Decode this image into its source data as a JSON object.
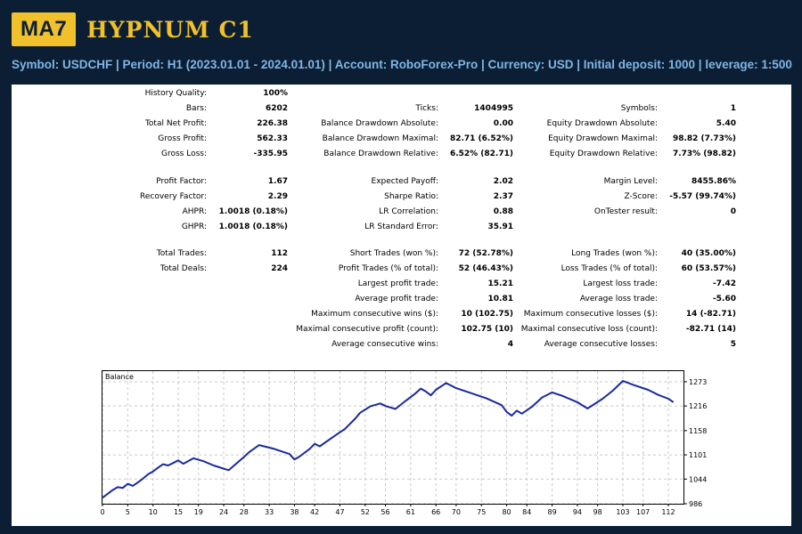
{
  "header": {
    "logo_badge": "MA7",
    "logo_name": "HYPNUM C1",
    "info_line": "Symbol: USDCHF  |  Period: H1 (2023.01.01 - 2024.01.01)  |  Account: RoboForex-Pro  |  Currency: USD  | Initial deposit: 1000  |  leverage: 1:500"
  },
  "report": {
    "history_quality": {
      "label": "History Quality:",
      "value": "100%"
    },
    "bars": {
      "label": "Bars:",
      "value": "6202"
    },
    "total_net_profit": {
      "label": "Total Net Profit:",
      "value": "226.38"
    },
    "gross_profit": {
      "label": "Gross Profit:",
      "value": "562.33"
    },
    "gross_loss": {
      "label": "Gross Loss:",
      "value": "-335.95"
    },
    "profit_factor": {
      "label": "Profit Factor:",
      "value": "1.67"
    },
    "recovery_factor": {
      "label": "Recovery Factor:",
      "value": "2.29"
    },
    "ahpr": {
      "label": "AHPR:",
      "value": "1.0018 (0.18%)"
    },
    "ghpr": {
      "label": "GHPR:",
      "value": "1.0018 (0.18%)"
    },
    "total_trades": {
      "label": "Total Trades:",
      "value": "112"
    },
    "total_deals": {
      "label": "Total Deals:",
      "value": "224"
    },
    "ticks": {
      "label": "Ticks:",
      "value": "1404995"
    },
    "balance_dd_abs": {
      "label": "Balance Drawdown Absolute:",
      "value": "0.00"
    },
    "balance_dd_max": {
      "label": "Balance Drawdown Maximal:",
      "value": "82.71 (6.52%)"
    },
    "balance_dd_rel": {
      "label": "Balance Drawdown Relative:",
      "value": "6.52% (82.71)"
    },
    "expected_payoff": {
      "label": "Expected Payoff:",
      "value": "2.02"
    },
    "sharpe_ratio": {
      "label": "Sharpe Ratio:",
      "value": "2.37"
    },
    "lr_correlation": {
      "label": "LR Correlation:",
      "value": "0.88"
    },
    "lr_std_error": {
      "label": "LR Standard Error:",
      "value": "35.91"
    },
    "short_trades": {
      "label": "Short Trades (won %):",
      "value": "72 (52.78%)"
    },
    "profit_trades": {
      "label": "Profit Trades (% of total):",
      "value": "52 (46.43%)"
    },
    "largest_profit": {
      "label": "Largest profit trade:",
      "value": "15.21"
    },
    "average_profit": {
      "label": "Average profit trade:",
      "value": "10.81"
    },
    "max_consec_wins": {
      "label": "Maximum consecutive wins ($):",
      "value": "10 (102.75)"
    },
    "maximal_consec_profit": {
      "label": "Maximal consecutive profit (count):",
      "value": "102.75 (10)"
    },
    "avg_consec_wins": {
      "label": "Average consecutive wins:",
      "value": "4"
    },
    "symbols": {
      "label": "Symbols:",
      "value": "1"
    },
    "equity_dd_abs": {
      "label": "Equity Drawdown Absolute:",
      "value": "5.40"
    },
    "equity_dd_max": {
      "label": "Equity Drawdown Maximal:",
      "value": "98.82 (7.73%)"
    },
    "equity_dd_rel": {
      "label": "Equity Drawdown Relative:",
      "value": "7.73% (98.82)"
    },
    "margin_level": {
      "label": "Margin Level:",
      "value": "8455.86%"
    },
    "z_score": {
      "label": "Z-Score:",
      "value": "-5.57 (99.74%)"
    },
    "ontester": {
      "label": "OnTester result:",
      "value": "0"
    },
    "long_trades": {
      "label": "Long Trades (won %):",
      "value": "40 (35.00%)"
    },
    "loss_trades": {
      "label": "Loss Trades (% of total):",
      "value": "60 (53.57%)"
    },
    "largest_loss": {
      "label": "Largest loss trade:",
      "value": "-7.42"
    },
    "average_loss": {
      "label": "Average loss trade:",
      "value": "-5.60"
    },
    "max_consec_losses": {
      "label": "Maximum consecutive losses ($):",
      "value": "14 (-82.71)"
    },
    "maximal_consec_loss": {
      "label": "Maximal consecutive loss (count):",
      "value": "-82.71 (14)"
    },
    "avg_consec_losses": {
      "label": "Average consecutive losses:",
      "value": "5"
    }
  },
  "chart_data": {
    "type": "line",
    "title": "Balance",
    "line_color": "#1a2a9e",
    "x_ticks": [
      0,
      5,
      10,
      15,
      19,
      24,
      28,
      33,
      38,
      42,
      47,
      52,
      56,
      61,
      66,
      70,
      75,
      80,
      84,
      89,
      94,
      98,
      103,
      107,
      112
    ],
    "y_ticks": [
      986,
      1044,
      1101,
      1158,
      1216,
      1273
    ],
    "xlim": [
      0,
      115
    ],
    "ylim": [
      986,
      1298
    ],
    "series": [
      {
        "name": "Balance",
        "x": [
          0,
          2,
          3,
          4,
          5,
          6,
          7,
          8,
          9,
          10,
          11,
          12,
          13,
          14,
          15,
          16,
          18,
          20,
          22,
          25,
          28,
          29,
          31,
          34,
          37,
          38,
          39,
          40,
          41,
          42,
          43,
          46,
          48,
          50,
          51,
          53,
          55,
          56,
          58,
          60,
          62,
          63,
          64,
          65,
          66,
          68,
          70,
          73,
          76,
          79,
          80,
          81,
          82,
          83,
          85,
          87,
          89,
          91,
          94,
          96,
          99,
          101,
          103,
          105,
          108,
          110,
          112,
          113
        ],
        "y": [
          1000,
          1018,
          1025,
          1023,
          1033,
          1028,
          1036,
          1045,
          1055,
          1062,
          1071,
          1079,
          1076,
          1082,
          1088,
          1080,
          1093,
          1086,
          1076,
          1065,
          1096,
          1107,
          1124,
          1115,
          1103,
          1090,
          1097,
          1106,
          1115,
          1127,
          1121,
          1146,
          1162,
          1186,
          1200,
          1215,
          1222,
          1216,
          1209,
          1228,
          1246,
          1257,
          1250,
          1241,
          1254,
          1270,
          1258,
          1246,
          1234,
          1218,
          1202,
          1193,
          1205,
          1198,
          1214,
          1236,
          1248,
          1240,
          1225,
          1210,
          1233,
          1252,
          1275,
          1266,
          1254,
          1242,
          1233,
          1225
        ]
      }
    ]
  }
}
